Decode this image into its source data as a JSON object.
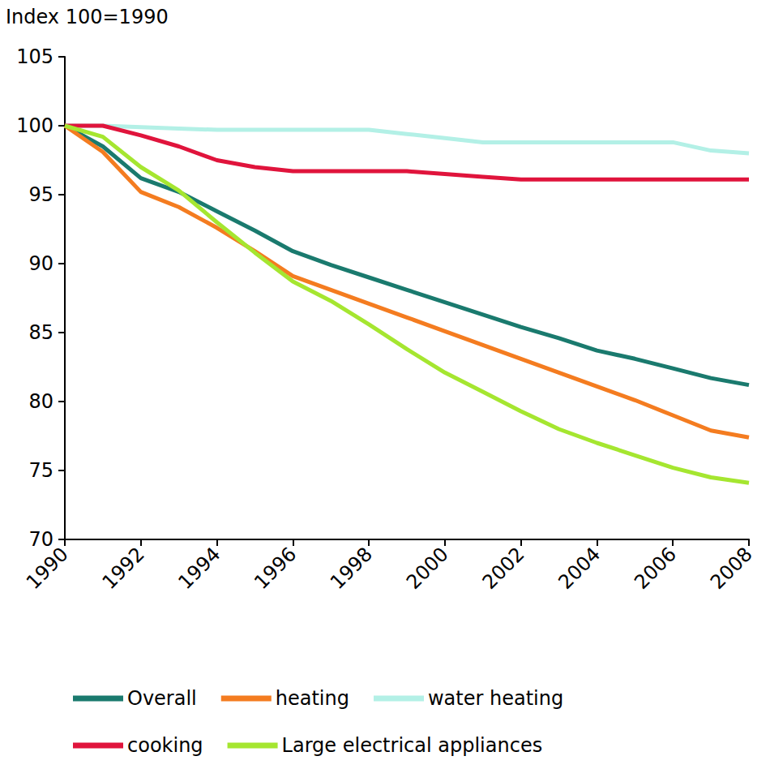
{
  "chart_data": {
    "type": "line",
    "y_label": "Index 100=1990",
    "x": [
      1990,
      1991,
      1992,
      1993,
      1994,
      1995,
      1996,
      1997,
      1998,
      1999,
      2000,
      2001,
      2002,
      2003,
      2004,
      2005,
      2006,
      2007,
      2008
    ],
    "xlim": [
      1990,
      2008
    ],
    "xticks": [
      1990,
      1992,
      1994,
      1996,
      1998,
      2000,
      2002,
      2004,
      2006,
      2008
    ],
    "ylim": [
      70,
      105
    ],
    "yticks": [
      70,
      75,
      80,
      85,
      90,
      95,
      100,
      105
    ],
    "grid": false,
    "legend": "bottom",
    "series": [
      {
        "name": "Overall",
        "color": "#1a7a6e",
        "values": [
          100,
          98.5,
          96.2,
          95.2,
          93.8,
          92.4,
          90.9,
          89.9,
          89.0,
          88.1,
          87.2,
          86.3,
          85.4,
          84.6,
          83.7,
          83.1,
          82.4,
          81.7,
          81.2
        ]
      },
      {
        "name": "heating",
        "color": "#f47c20",
        "values": [
          100,
          98.1,
          95.2,
          94.1,
          92.6,
          90.9,
          89.1,
          88.1,
          87.1,
          86.1,
          85.1,
          84.1,
          83.1,
          82.1,
          81.1,
          80.1,
          79.0,
          77.9,
          77.4
        ]
      },
      {
        "name": "water heating",
        "color": "#b3f0e6",
        "values": [
          100,
          100,
          99.9,
          99.8,
          99.7,
          99.7,
          99.7,
          99.7,
          99.7,
          99.4,
          99.1,
          98.8,
          98.8,
          98.8,
          98.8,
          98.8,
          98.8,
          98.2,
          98.0
        ]
      },
      {
        "name": "cooking",
        "color": "#e0143c",
        "values": [
          100,
          100,
          99.3,
          98.5,
          97.5,
          97.0,
          96.7,
          96.7,
          96.7,
          96.7,
          96.5,
          96.3,
          96.1,
          96.1,
          96.1,
          96.1,
          96.1,
          96.1,
          96.1
        ]
      },
      {
        "name": "Large electrical appliances",
        "color": "#a5e630",
        "values": [
          100,
          99.2,
          97.0,
          95.3,
          93.0,
          90.8,
          88.7,
          87.3,
          85.6,
          83.8,
          82.1,
          80.7,
          79.3,
          78.0,
          77.0,
          76.1,
          75.2,
          74.5,
          74.1
        ]
      }
    ]
  }
}
